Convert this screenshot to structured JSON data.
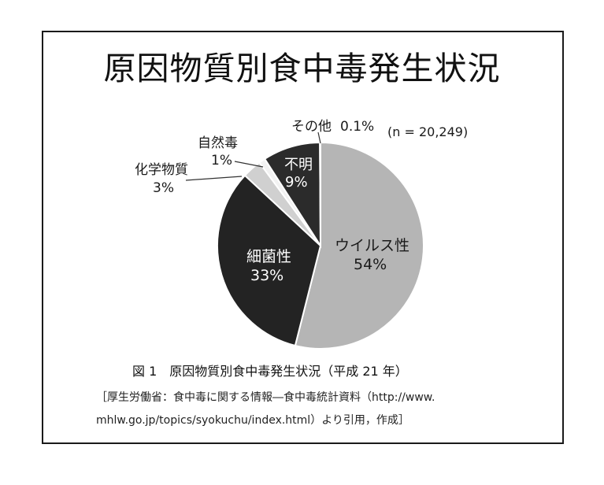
{
  "title": "原因物質別食中毒発生状況",
  "n_label": "(n = 20,249)",
  "chart_data": {
    "type": "pie",
    "title": "原因物質別食中毒発生状況",
    "total_n": 20249,
    "slices": [
      {
        "label": "ウイルス性",
        "value": 54,
        "value_label": "54%",
        "color": "#b5b5b5"
      },
      {
        "label": "細菌性",
        "value": 33,
        "value_label": "33%",
        "color": "#232323"
      },
      {
        "label": "化学物質",
        "value": 3,
        "value_label": "3%",
        "color": "#d0d0d0"
      },
      {
        "label": "自然毒",
        "value": 1,
        "value_label": "1%",
        "color": "#f2f2f2"
      },
      {
        "label": "不明",
        "value": 9,
        "value_label": "9%",
        "color": "#2b2b2b"
      },
      {
        "label": "その他",
        "value": 0.1,
        "value_label": "0.1%",
        "color": "#888888"
      }
    ],
    "start": "12 o'clock",
    "direction": "clockwise"
  },
  "caption": "図 1　原因物質別食中毒発生状況（平成 21 年）",
  "source_line1": "［厚生労働省：食中毒に関する情報―食中毒統計資料（http://www.",
  "source_line2": "mhlw.go.jp/topics/syokuchu/index.html）より引用，作成］"
}
